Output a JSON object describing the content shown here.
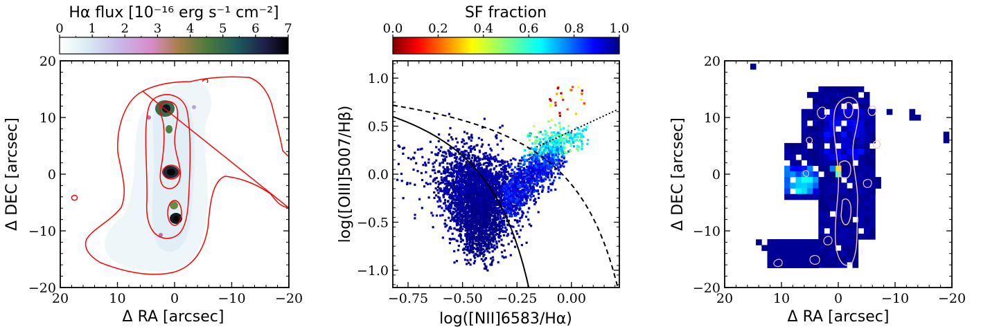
{
  "chart_data": [
    {
      "type": "heatmap",
      "colorbar": {
        "label": "Hα flux [10⁻¹⁶ erg s⁻¹ cm⁻²]",
        "ticks": [
          "0",
          "1",
          "2",
          "3",
          "4",
          "5",
          "6",
          "7"
        ],
        "range": [
          0,
          7
        ],
        "colormap": "cubehelix_r"
      },
      "xlabel": "Δ RA [arcsec]",
      "ylabel": "Δ DEC [arcsec]",
      "xlim": [
        20,
        -20
      ],
      "ylim": [
        -20,
        20
      ],
      "xticks": [
        "20",
        "10",
        "0",
        "−10",
        "−20"
      ],
      "yticks": [
        "20",
        "10",
        "0",
        "−10",
        "−20"
      ],
      "contours": {
        "color": "#ff0000",
        "description": "Hα flux isophotes"
      },
      "peaks": [
        {
          "ra": 0.8,
          "dec": 11.5,
          "flux": 6.5
        },
        {
          "ra": 0.3,
          "dec": 0.0,
          "flux": 7.0
        },
        {
          "ra": -0.2,
          "dec": -6.3,
          "flux": 5.5
        },
        {
          "ra": -0.4,
          "dec": -8.2,
          "flux": 6.8
        }
      ]
    },
    {
      "type": "scatter",
      "colorbar": {
        "label": "SF fraction",
        "ticks": [
          "0.0",
          "0.2",
          "0.4",
          "0.6",
          "0.8",
          "1.0"
        ],
        "range": [
          0.0,
          1.0
        ],
        "colormap": "jet"
      },
      "xlabel": "log([NII]6583/Hα)",
      "ylabel": "log([OIII]5007/Hβ)",
      "xlim": [
        -0.82,
        0.22
      ],
      "ylim": [
        -1.18,
        1.18
      ],
      "xticks": [
        "−0.75",
        "−0.50",
        "−0.25",
        "0.00"
      ],
      "yticks": [
        "1.0",
        "0.5",
        "0.0",
        "−0.5",
        "−1.0"
      ],
      "curves": [
        {
          "style": "solid",
          "equation": "0.61/(x-0.05)+1.3"
        },
        {
          "style": "dashed",
          "equation": "0.61/(x-0.47)+1.19"
        },
        {
          "style": "dotted",
          "equation": "1.05*x+0.45"
        }
      ],
      "clusters": [
        {
          "center": [
            -0.43,
            -0.1
          ],
          "sf_fraction": 0.98
        },
        {
          "center": [
            -0.43,
            -0.5
          ],
          "sf_fraction": 1.0
        },
        {
          "center": [
            -0.22,
            0.0
          ],
          "sf_fraction": 0.9
        },
        {
          "center": [
            -0.15,
            0.3
          ],
          "sf_fraction": 0.6
        },
        {
          "center": [
            -0.1,
            0.65
          ],
          "sf_fraction": 0.15
        }
      ]
    },
    {
      "type": "heatmap",
      "colormap": "jet",
      "xlabel": "Δ RA [arcsec]",
      "ylabel": "Δ DEC [arcsec]",
      "xlim": [
        20,
        -20
      ],
      "ylim": [
        -20,
        20
      ],
      "xticks": [
        "20",
        "10",
        "0",
        "−10",
        "−20"
      ],
      "yticks": [
        "20",
        "10",
        "0",
        "−10",
        "−20"
      ],
      "contours": {
        "color": "#f5c6b8",
        "description": "Hα flux isophotes"
      }
    }
  ]
}
